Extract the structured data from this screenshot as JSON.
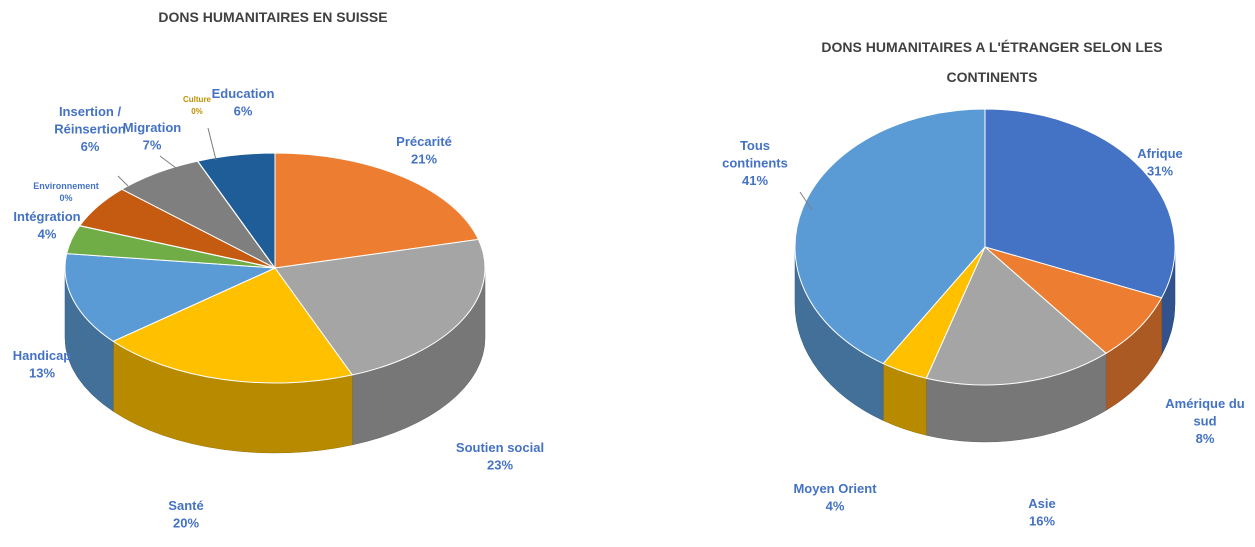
{
  "chart_data": [
    {
      "type": "pie",
      "title": "DONS HUMANITAIRES EN SUISSE",
      "slices": [
        {
          "label": "Précarité",
          "pct_text": "21%",
          "value": 21,
          "color": "#ED7D31"
        },
        {
          "label": "Soutien social",
          "pct_text": "23%",
          "value": 23,
          "color": "#A5A5A5"
        },
        {
          "label": "Santé",
          "pct_text": "20%",
          "value": 20,
          "color": "#FFC000"
        },
        {
          "label": "Handicap",
          "pct_text": "13%",
          "value": 13,
          "color": "#5B9BD5"
        },
        {
          "label": "Intégration",
          "pct_text": "4%",
          "value": 4,
          "color": "#70AD47"
        },
        {
          "label": "Environnement",
          "pct_text": "0%",
          "value": 0,
          "color": "#264478"
        },
        {
          "label": "Insertion / Réinsertion",
          "pct_text": "6%",
          "value": 6,
          "color": "#C55A11"
        },
        {
          "label": "Migration",
          "pct_text": "7%",
          "value": 7,
          "color": "#7F7F7F"
        },
        {
          "label": "Culture",
          "pct_text": "0%",
          "value": 0,
          "color": "#BF9000"
        },
        {
          "label": "Education",
          "pct_text": "6%",
          "value": 6,
          "color": "#1F5D99"
        }
      ]
    },
    {
      "type": "pie",
      "title": "DONS HUMANITAIRES A L'ÉTRANGER SELON LES CONTINENTS",
      "slices": [
        {
          "label": "Afrique",
          "pct_text": "31%",
          "value": 31,
          "color": "#4472C4"
        },
        {
          "label": "Amérique du sud",
          "pct_text": "8%",
          "value": 8,
          "color": "#ED7D31"
        },
        {
          "label": "Asie",
          "pct_text": "16%",
          "value": 16,
          "color": "#A5A5A5"
        },
        {
          "label": "Moyen Orient",
          "pct_text": "4%",
          "value": 4,
          "color": "#FFC000"
        },
        {
          "label": "Tous continents",
          "pct_text": "41%",
          "value": 41,
          "color": "#5B9BD5"
        }
      ]
    }
  ]
}
